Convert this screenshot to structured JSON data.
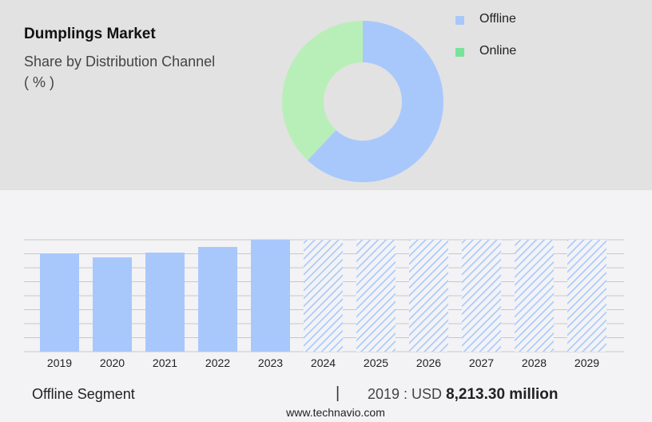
{
  "header": {
    "title": "Dumplings Market",
    "subtitle": "Share by Distribution Channel",
    "unit": "( % )"
  },
  "colors": {
    "offline": "#a8c8fc",
    "online": "#b8efb8",
    "online_legend": "#77e39a",
    "grid": "#c8c8c8"
  },
  "footer": {
    "segment": "Offline Segment",
    "separator": "|",
    "year_prefix": "2019 : USD ",
    "value": "8,213.30 million",
    "url": "www.technavio.com"
  },
  "chart_data": [
    {
      "type": "pie",
      "variant": "donut",
      "legend": [
        {
          "label": "Offline"
        },
        {
          "label": "Online"
        }
      ],
      "slices": [
        {
          "name": "Offline",
          "value": 62
        },
        {
          "name": "Online",
          "value": 38
        }
      ],
      "legend_placement": "top-right"
    },
    {
      "type": "bar",
      "categories": [
        "2019",
        "2020",
        "2021",
        "2022",
        "2023",
        "2024",
        "2025",
        "2026",
        "2027",
        "2028",
        "2029"
      ],
      "values": [
        8213.3,
        7880,
        8280,
        8750,
        9350,
        null,
        null,
        null,
        null,
        null,
        null
      ],
      "forecast": [
        false,
        false,
        false,
        false,
        false,
        true,
        true,
        true,
        true,
        true,
        true
      ],
      "ylim": [
        0,
        9350
      ],
      "grid": true,
      "unit": "USD million"
    }
  ]
}
